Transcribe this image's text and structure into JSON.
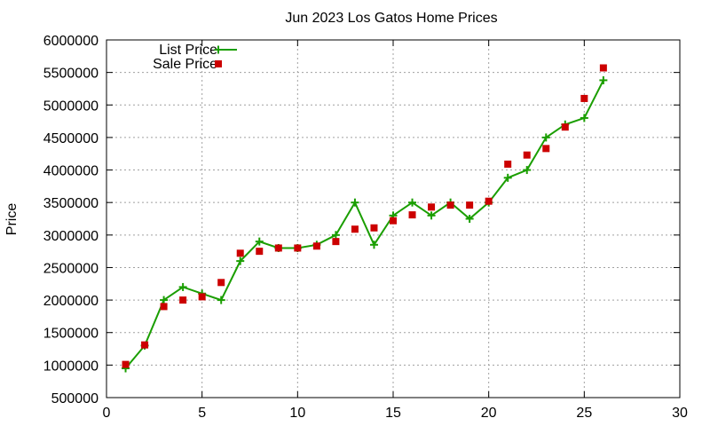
{
  "chart_data": {
    "type": "line",
    "title": "Jun 2023 Los Gatos Home Prices",
    "xlabel": "",
    "ylabel": "Price",
    "xlim": [
      0,
      30
    ],
    "ylim": [
      500000,
      6000000
    ],
    "x_ticks": [
      0,
      5,
      10,
      15,
      20,
      25,
      30
    ],
    "y_ticks": [
      500000,
      1000000,
      1500000,
      2000000,
      2500000,
      3000000,
      3500000,
      4000000,
      4500000,
      5000000,
      5500000,
      6000000
    ],
    "grid": true,
    "legend_position": "top-left",
    "x": [
      1,
      2,
      3,
      4,
      5,
      6,
      7,
      8,
      9,
      10,
      11,
      12,
      13,
      14,
      15,
      16,
      17,
      18,
      19,
      20,
      21,
      22,
      23,
      24,
      25,
      26
    ],
    "series": [
      {
        "name": "List Price",
        "style": "line-plus",
        "color": "#1a9e00",
        "values": [
          950000,
          1300000,
          2000000,
          2200000,
          2100000,
          2000000,
          2600000,
          2900000,
          2800000,
          2800000,
          2850000,
          3000000,
          3500000,
          2850000,
          3300000,
          3500000,
          3300000,
          3500000,
          3250000,
          3500000,
          3880000,
          4000000,
          4500000,
          4700000,
          4800000,
          5380000
        ]
      },
      {
        "name": "Sale Price",
        "style": "square",
        "color": "#cc0000",
        "values": [
          1010000,
          1310000,
          1900000,
          2000000,
          2050000,
          2270000,
          2720000,
          2750000,
          2800000,
          2800000,
          2830000,
          2900000,
          3090000,
          3110000,
          3220000,
          3310000,
          3430000,
          3460000,
          3460000,
          3520000,
          4090000,
          4230000,
          4330000,
          4660000,
          5100000,
          5570000
        ]
      }
    ]
  }
}
